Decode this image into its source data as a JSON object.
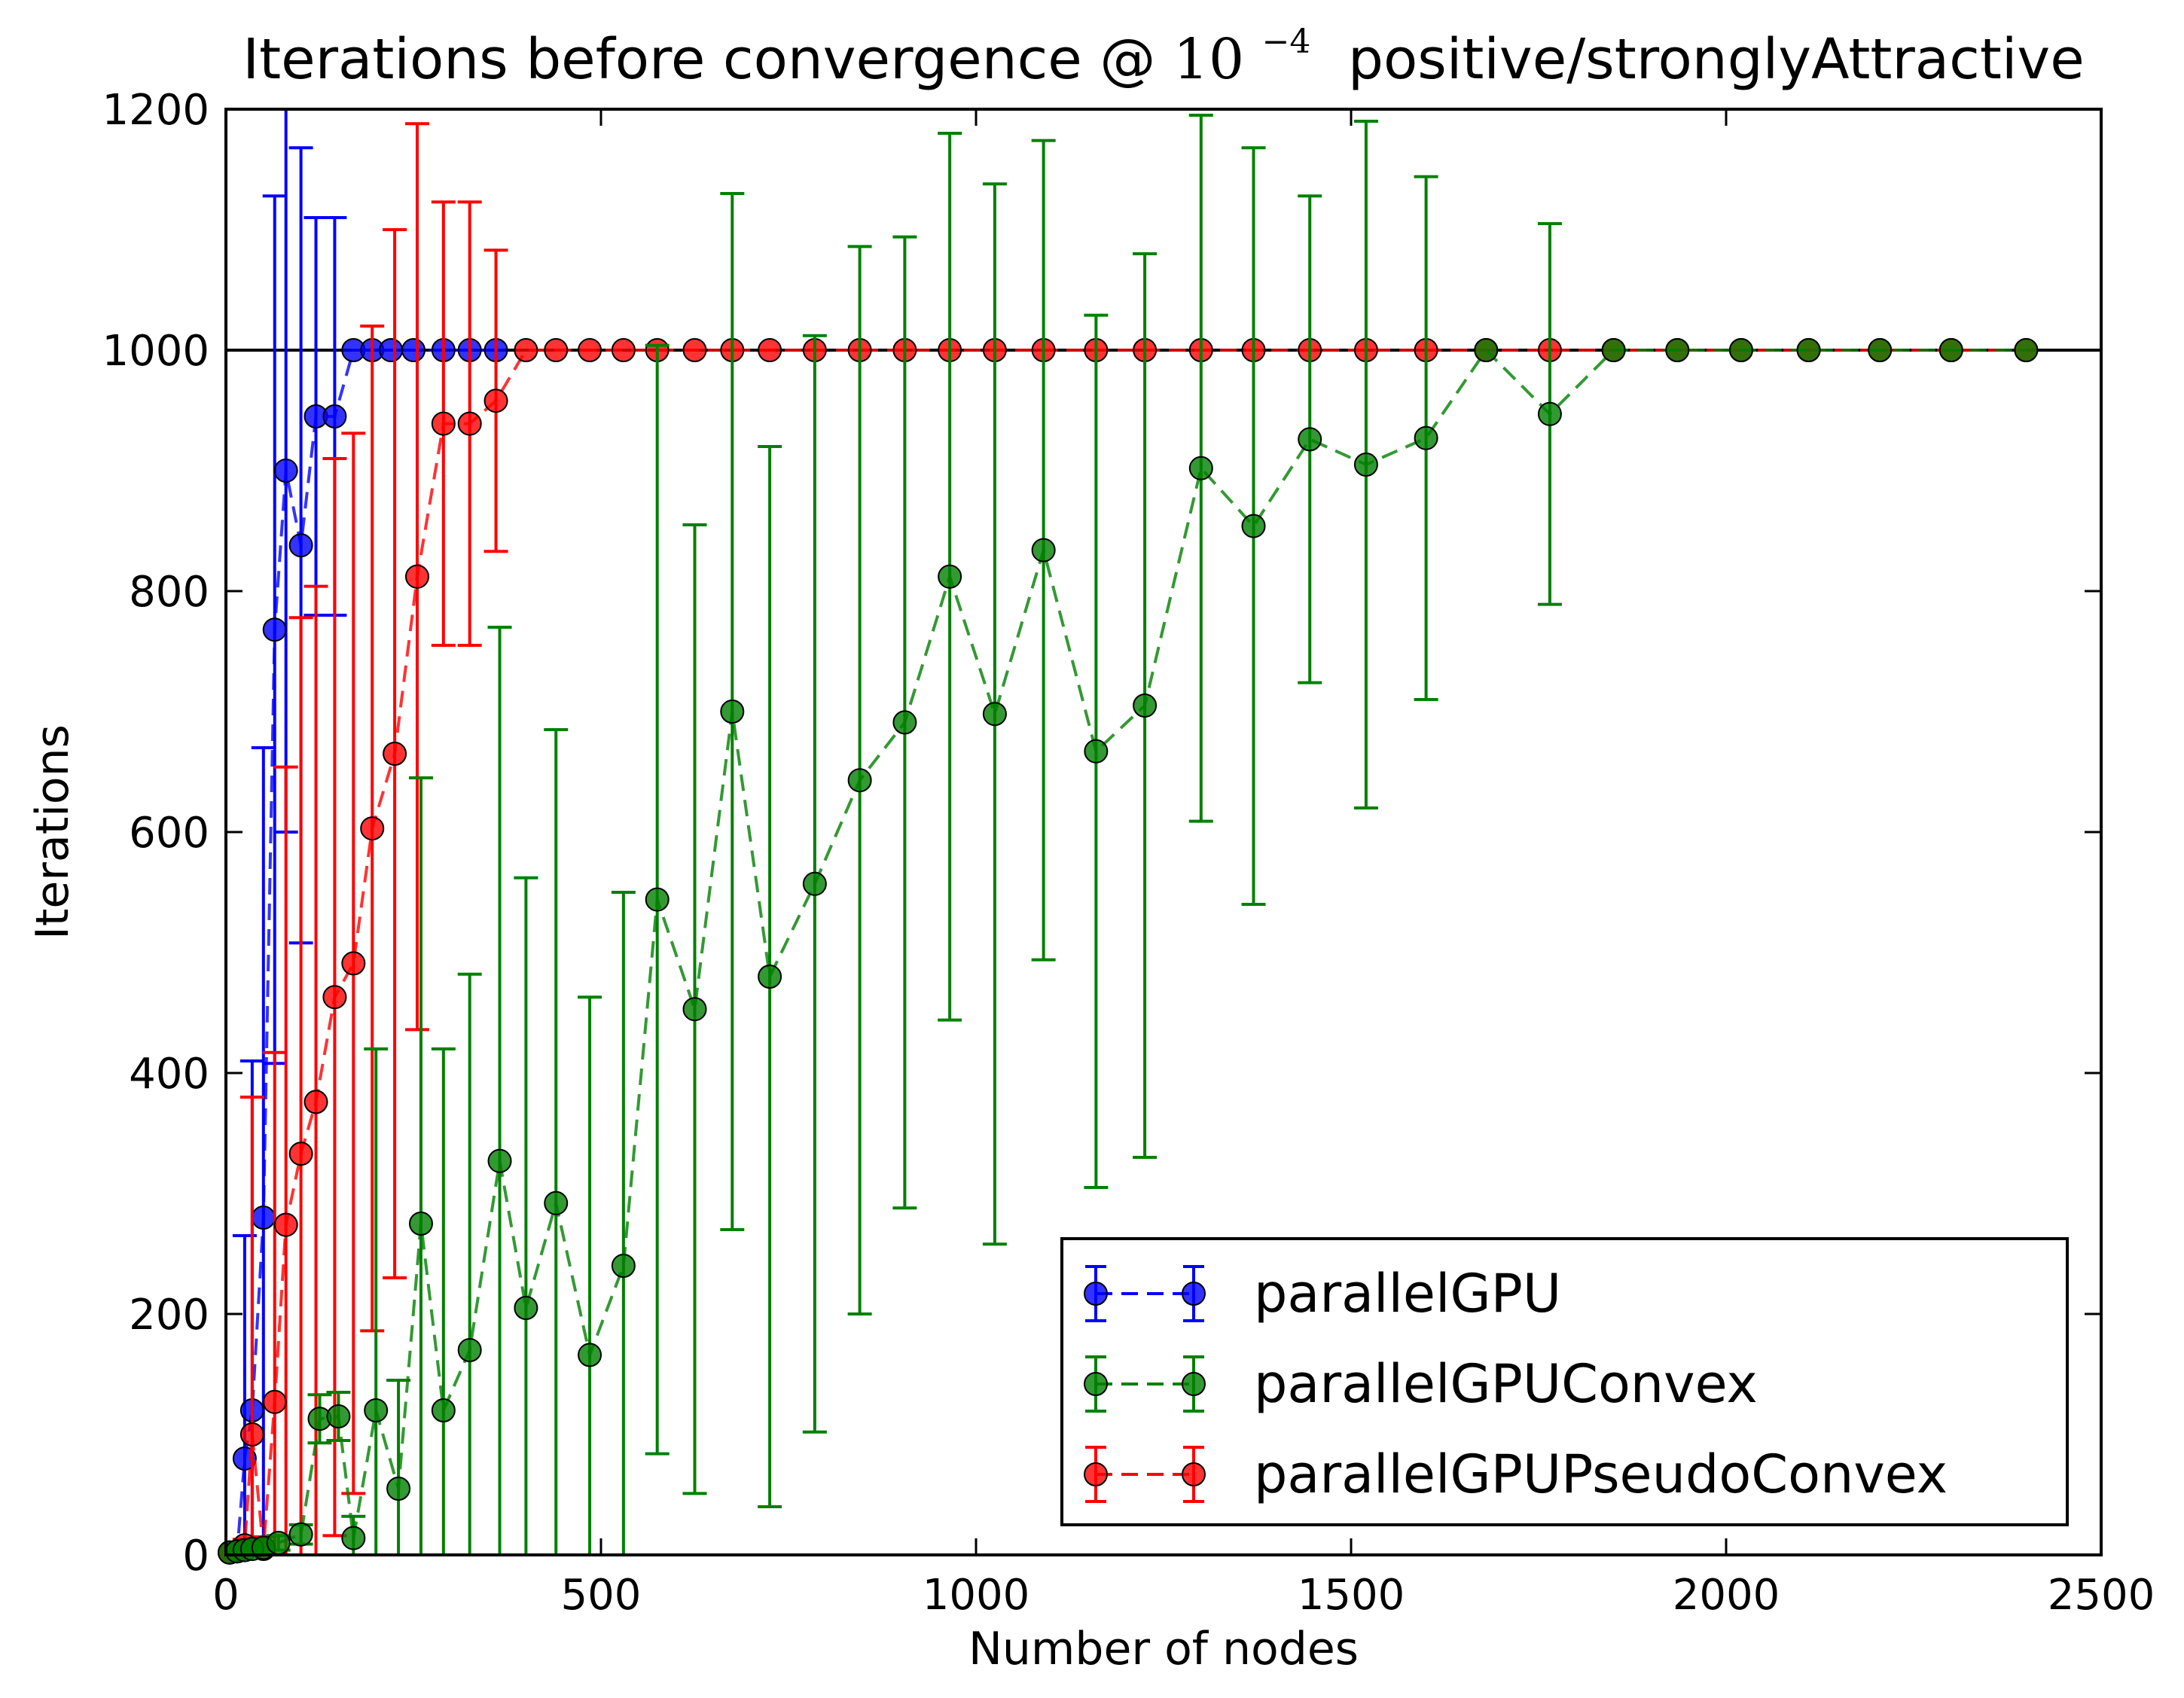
{
  "chart_data": {
    "type": "line",
    "title_main": "Iterations before convergence @",
    "title_math": {
      "base": "10",
      "exponent": "−4"
    },
    "title_rest": "positive/stronglyAttractive",
    "xlabel": "Number of nodes",
    "ylabel": "Iterations",
    "xlim": [
      0,
      2500
    ],
    "ylim": [
      0,
      1200
    ],
    "xticks": [
      0,
      500,
      1000,
      1500,
      2000,
      2500
    ],
    "yticks": [
      0,
      200,
      400,
      600,
      800,
      1000,
      1200
    ],
    "grid": false,
    "legend_position": "lower-right",
    "reference_line": 1000,
    "series": [
      {
        "name": "parallelGPU",
        "color": "#0000ff",
        "x": [
          5,
          15,
          25,
          35,
          50,
          65,
          80,
          100,
          120,
          145,
          170,
          195,
          220,
          250,
          290,
          325,
          360
        ],
        "y": [
          2,
          3,
          80,
          120,
          280,
          768,
          900,
          838,
          945,
          945,
          1000,
          1000,
          1000,
          1000,
          1000,
          1000,
          1000
        ],
        "err": [
          1,
          2,
          185,
          290,
          390,
          360,
          300,
          330,
          165,
          165,
          0,
          0,
          0,
          0,
          0,
          0,
          0
        ]
      },
      {
        "name": "parallelGPUConvex",
        "color": "#008000",
        "x": [
          5,
          15,
          25,
          35,
          50,
          70,
          100,
          125,
          150,
          170,
          200,
          230,
          260,
          290,
          325,
          365,
          400,
          440,
          485,
          530,
          575,
          625,
          675,
          725,
          785,
          845,
          905,
          965,
          1025,
          1090,
          1160,
          1225,
          1300,
          1370,
          1445,
          1520,
          1600,
          1680,
          1765,
          1850,
          1935,
          2020,
          2110,
          2205,
          2300,
          2400
        ],
        "y": [
          2,
          3,
          4,
          5,
          6,
          10,
          17,
          113,
          115,
          14,
          120,
          55,
          275,
          120,
          170,
          327,
          205,
          292,
          166,
          240,
          544,
          453,
          700,
          480,
          557,
          643,
          691,
          812,
          698,
          834,
          667,
          705,
          902,
          854,
          926,
          905,
          927,
          1000,
          947,
          1000,
          1000,
          1000,
          1000,
          1000,
          1000,
          1000
        ],
        "err": [
          1,
          2,
          3,
          4,
          5,
          6,
          8,
          20,
          20,
          18,
          300,
          90,
          370,
          300,
          312,
          443,
          357,
          393,
          297,
          310,
          460,
          402,
          430,
          440,
          455,
          443,
          403,
          368,
          440,
          340,
          362,
          375,
          293,
          314,
          202,
          285,
          217,
          0,
          158,
          0,
          0,
          0,
          0,
          0,
          0,
          0
        ]
      },
      {
        "name": "parallelGPUPseudoConvex",
        "color": "#ff0000",
        "x": [
          5,
          15,
          25,
          35,
          50,
          65,
          80,
          100,
          120,
          145,
          170,
          195,
          225,
          255,
          290,
          325,
          360,
          400,
          440,
          485,
          530,
          575,
          625,
          675,
          725,
          785,
          845,
          905,
          965,
          1025,
          1090,
          1160,
          1225,
          1300,
          1370,
          1445,
          1520,
          1600,
          1680,
          1765,
          1850,
          1935,
          2020,
          2110,
          2205,
          2300,
          2400
        ],
        "y": [
          2,
          3,
          8,
          100,
          5,
          127,
          274,
          333,
          376,
          463,
          491,
          603,
          665,
          812,
          939,
          939,
          958,
          1000,
          1000,
          1000,
          1000,
          1000,
          1000,
          1000,
          1000,
          1000,
          1000,
          1000,
          1000,
          1000,
          1000,
          1000,
          1000,
          1000,
          1000,
          1000,
          1000,
          1000,
          1000,
          1000,
          1000,
          1000,
          1000,
          1000,
          1000,
          1000,
          1000
        ],
        "err": [
          1,
          2,
          5,
          280,
          10,
          290,
          380,
          445,
          428,
          447,
          440,
          417,
          435,
          376,
          184,
          184,
          125,
          0,
          0,
          0,
          0,
          0,
          0,
          0,
          0,
          0,
          0,
          0,
          0,
          0,
          0,
          0,
          0,
          0,
          0,
          0,
          0,
          0,
          0,
          0,
          0,
          0,
          0,
          0,
          0,
          0,
          0
        ]
      }
    ]
  }
}
